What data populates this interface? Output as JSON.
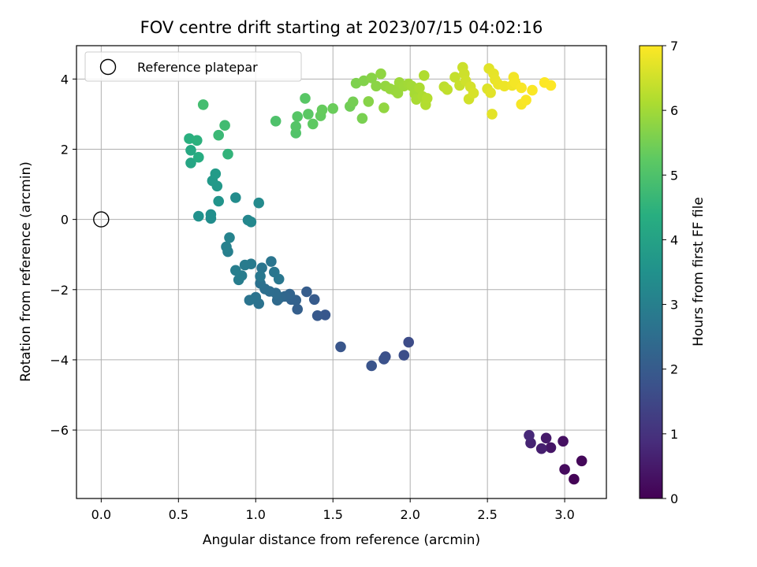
{
  "chart_data": {
    "type": "scatter",
    "title": "FOV centre drift starting at 2023/07/15 04:02:16",
    "xlabel": "Angular distance from reference (arcmin)",
    "ylabel": "Rotation from reference (arcmin)",
    "xlim": [
      -0.16,
      3.27
    ],
    "ylim": [
      -7.95,
      4.95
    ],
    "xticks": [
      0.0,
      0.5,
      1.0,
      1.5,
      2.0,
      2.5,
      3.0
    ],
    "xtick_labels": [
      "0.0",
      "0.5",
      "1.0",
      "1.5",
      "2.0",
      "2.5",
      "3.0"
    ],
    "yticks": [
      -6,
      -4,
      -2,
      0,
      2,
      4
    ],
    "ytick_labels": [
      "−6",
      "−4",
      "−2",
      "0",
      "2",
      "4"
    ],
    "grid": true,
    "legend": {
      "position": "top-left",
      "entries": [
        "Reference platepar"
      ]
    },
    "reference_point": {
      "x": 0.0,
      "y": 0.0
    },
    "colorbar": {
      "label": "Hours from first FF file",
      "range": [
        0,
        7
      ],
      "ticks": [
        0,
        1,
        2,
        3,
        4,
        5,
        6,
        7
      ],
      "tick_labels": [
        "0",
        "1",
        "2",
        "3",
        "4",
        "5",
        "6",
        "7"
      ],
      "colormap": "viridis"
    },
    "points": [
      {
        "x": 3.06,
        "y": -7.4,
        "c": 0.05
      },
      {
        "x": 3.11,
        "y": -6.88,
        "c": 0.12
      },
      {
        "x": 3.0,
        "y": -7.12,
        "c": 0.2
      },
      {
        "x": 2.99,
        "y": -6.32,
        "c": 0.3
      },
      {
        "x": 2.91,
        "y": -6.5,
        "c": 0.4
      },
      {
        "x": 2.88,
        "y": -6.23,
        "c": 0.5
      },
      {
        "x": 2.85,
        "y": -6.53,
        "c": 0.6
      },
      {
        "x": 2.78,
        "y": -6.37,
        "c": 0.7
      },
      {
        "x": 2.77,
        "y": -6.15,
        "c": 0.8
      },
      {
        "x": 1.99,
        "y": -3.5,
        "c": 1.6
      },
      {
        "x": 1.96,
        "y": -3.87,
        "c": 1.65
      },
      {
        "x": 1.84,
        "y": -3.91,
        "c": 1.7
      },
      {
        "x": 1.83,
        "y": -3.98,
        "c": 1.75
      },
      {
        "x": 1.75,
        "y": -4.17,
        "c": 1.8
      },
      {
        "x": 1.55,
        "y": -3.63,
        "c": 1.85
      },
      {
        "x": 1.45,
        "y": -2.72,
        "c": 1.9
      },
      {
        "x": 1.4,
        "y": -2.74,
        "c": 1.95
      },
      {
        "x": 1.38,
        "y": -2.28,
        "c": 2.0
      },
      {
        "x": 1.33,
        "y": -2.06,
        "c": 2.05
      },
      {
        "x": 1.27,
        "y": -2.56,
        "c": 2.1
      },
      {
        "x": 1.26,
        "y": -2.3,
        "c": 2.15
      },
      {
        "x": 1.23,
        "y": -2.28,
        "c": 2.2
      },
      {
        "x": 1.22,
        "y": -2.13,
        "c": 2.25
      },
      {
        "x": 1.19,
        "y": -2.19,
        "c": 2.3
      },
      {
        "x": 1.16,
        "y": -2.22,
        "c": 2.35
      },
      {
        "x": 1.14,
        "y": -2.3,
        "c": 2.4
      },
      {
        "x": 1.13,
        "y": -2.1,
        "c": 2.45
      },
      {
        "x": 1.09,
        "y": -2.05,
        "c": 2.5
      },
      {
        "x": 1.06,
        "y": -1.98,
        "c": 2.55
      },
      {
        "x": 1.03,
        "y": -1.82,
        "c": 2.6
      },
      {
        "x": 1.02,
        "y": -2.4,
        "c": 2.62
      },
      {
        "x": 1.0,
        "y": -2.22,
        "c": 2.65
      },
      {
        "x": 0.96,
        "y": -2.3,
        "c": 2.68
      },
      {
        "x": 1.04,
        "y": -1.38,
        "c": 2.7
      },
      {
        "x": 1.1,
        "y": -1.2,
        "c": 2.72
      },
      {
        "x": 1.12,
        "y": -1.5,
        "c": 2.75
      },
      {
        "x": 1.15,
        "y": -1.7,
        "c": 2.78
      },
      {
        "x": 1.03,
        "y": -1.62,
        "c": 2.8
      },
      {
        "x": 0.97,
        "y": -1.27,
        "c": 2.85
      },
      {
        "x": 0.93,
        "y": -1.3,
        "c": 2.88
      },
      {
        "x": 0.91,
        "y": -1.6,
        "c": 2.9
      },
      {
        "x": 0.89,
        "y": -1.72,
        "c": 2.93
      },
      {
        "x": 0.87,
        "y": -1.45,
        "c": 2.95
      },
      {
        "x": 0.82,
        "y": -0.92,
        "c": 3.0
      },
      {
        "x": 0.81,
        "y": -0.78,
        "c": 3.05
      },
      {
        "x": 0.83,
        "y": -0.52,
        "c": 3.1
      },
      {
        "x": 0.95,
        "y": -0.02,
        "c": 3.2
      },
      {
        "x": 0.97,
        "y": -0.07,
        "c": 3.25
      },
      {
        "x": 1.02,
        "y": 0.47,
        "c": 3.3
      },
      {
        "x": 0.87,
        "y": 0.62,
        "c": 3.35
      },
      {
        "x": 0.71,
        "y": 0.03,
        "c": 3.4
      },
      {
        "x": 0.71,
        "y": 0.14,
        "c": 3.45
      },
      {
        "x": 0.63,
        "y": 0.09,
        "c": 3.5
      },
      {
        "x": 0.76,
        "y": 0.52,
        "c": 3.6
      },
      {
        "x": 0.75,
        "y": 0.95,
        "c": 3.7
      },
      {
        "x": 0.72,
        "y": 1.1,
        "c": 3.75
      },
      {
        "x": 0.74,
        "y": 1.3,
        "c": 3.8
      },
      {
        "x": 0.58,
        "y": 1.61,
        "c": 4.1
      },
      {
        "x": 0.58,
        "y": 1.97,
        "c": 4.2
      },
      {
        "x": 0.63,
        "y": 1.77,
        "c": 4.3
      },
      {
        "x": 0.57,
        "y": 2.3,
        "c": 4.4
      },
      {
        "x": 0.62,
        "y": 2.25,
        "c": 4.45
      },
      {
        "x": 0.82,
        "y": 1.86,
        "c": 4.55
      },
      {
        "x": 0.76,
        "y": 2.4,
        "c": 4.7
      },
      {
        "x": 0.8,
        "y": 2.68,
        "c": 4.8
      },
      {
        "x": 0.66,
        "y": 3.27,
        "c": 4.85
      },
      {
        "x": 1.13,
        "y": 2.8,
        "c": 5.0
      },
      {
        "x": 1.26,
        "y": 2.46,
        "c": 5.05
      },
      {
        "x": 1.26,
        "y": 2.65,
        "c": 5.1
      },
      {
        "x": 1.27,
        "y": 2.93,
        "c": 5.12
      },
      {
        "x": 1.32,
        "y": 3.45,
        "c": 5.15
      },
      {
        "x": 1.34,
        "y": 3.0,
        "c": 5.2
      },
      {
        "x": 1.37,
        "y": 2.72,
        "c": 5.25
      },
      {
        "x": 1.42,
        "y": 2.95,
        "c": 5.3
      },
      {
        "x": 1.43,
        "y": 3.12,
        "c": 5.33
      },
      {
        "x": 1.5,
        "y": 3.16,
        "c": 5.38
      },
      {
        "x": 1.61,
        "y": 3.22,
        "c": 5.45
      },
      {
        "x": 1.63,
        "y": 3.35,
        "c": 5.5
      },
      {
        "x": 1.69,
        "y": 2.88,
        "c": 5.55
      },
      {
        "x": 1.65,
        "y": 3.88,
        "c": 5.6
      },
      {
        "x": 1.7,
        "y": 3.95,
        "c": 5.65
      },
      {
        "x": 1.73,
        "y": 3.36,
        "c": 5.7
      },
      {
        "x": 1.75,
        "y": 4.03,
        "c": 5.72
      },
      {
        "x": 1.78,
        "y": 3.8,
        "c": 5.75
      },
      {
        "x": 1.81,
        "y": 4.15,
        "c": 5.8
      },
      {
        "x": 1.83,
        "y": 3.18,
        "c": 5.83
      },
      {
        "x": 1.84,
        "y": 3.8,
        "c": 5.85
      },
      {
        "x": 1.87,
        "y": 3.72,
        "c": 5.88
      },
      {
        "x": 1.9,
        "y": 3.68,
        "c": 5.9
      },
      {
        "x": 1.92,
        "y": 3.6,
        "c": 5.92
      },
      {
        "x": 1.93,
        "y": 3.9,
        "c": 5.95
      },
      {
        "x": 1.96,
        "y": 3.8,
        "c": 5.97
      },
      {
        "x": 1.99,
        "y": 3.86,
        "c": 6.0
      },
      {
        "x": 2.01,
        "y": 3.8,
        "c": 6.02
      },
      {
        "x": 2.03,
        "y": 3.58,
        "c": 6.05
      },
      {
        "x": 2.04,
        "y": 3.42,
        "c": 6.08
      },
      {
        "x": 2.06,
        "y": 3.75,
        "c": 6.1
      },
      {
        "x": 2.08,
        "y": 3.5,
        "c": 6.12
      },
      {
        "x": 2.09,
        "y": 4.1,
        "c": 6.15
      },
      {
        "x": 2.1,
        "y": 3.27,
        "c": 6.18
      },
      {
        "x": 2.11,
        "y": 3.45,
        "c": 6.2
      },
      {
        "x": 2.22,
        "y": 3.78,
        "c": 6.3
      },
      {
        "x": 2.24,
        "y": 3.7,
        "c": 6.33
      },
      {
        "x": 2.29,
        "y": 4.05,
        "c": 6.38
      },
      {
        "x": 2.32,
        "y": 3.82,
        "c": 6.42
      },
      {
        "x": 2.34,
        "y": 4.33,
        "c": 6.45
      },
      {
        "x": 2.35,
        "y": 4.15,
        "c": 6.48
      },
      {
        "x": 2.36,
        "y": 3.95,
        "c": 6.5
      },
      {
        "x": 2.38,
        "y": 3.43,
        "c": 6.52
      },
      {
        "x": 2.39,
        "y": 3.78,
        "c": 6.55
      },
      {
        "x": 2.41,
        "y": 3.6,
        "c": 6.58
      },
      {
        "x": 2.5,
        "y": 3.72,
        "c": 6.65
      },
      {
        "x": 2.51,
        "y": 4.3,
        "c": 6.68
      },
      {
        "x": 2.52,
        "y": 3.61,
        "c": 6.7
      },
      {
        "x": 2.53,
        "y": 3.0,
        "c": 6.72
      },
      {
        "x": 2.54,
        "y": 4.15,
        "c": 6.75
      },
      {
        "x": 2.55,
        "y": 3.98,
        "c": 6.77
      },
      {
        "x": 2.57,
        "y": 3.85,
        "c": 6.8
      },
      {
        "x": 2.61,
        "y": 3.8,
        "c": 6.83
      },
      {
        "x": 2.66,
        "y": 3.82,
        "c": 6.86
      },
      {
        "x": 2.67,
        "y": 4.05,
        "c": 6.88
      },
      {
        "x": 2.68,
        "y": 3.9,
        "c": 6.9
      },
      {
        "x": 2.72,
        "y": 3.28,
        "c": 6.92
      },
      {
        "x": 2.72,
        "y": 3.75,
        "c": 6.94
      },
      {
        "x": 2.75,
        "y": 3.4,
        "c": 6.96
      },
      {
        "x": 2.79,
        "y": 3.68,
        "c": 6.97
      },
      {
        "x": 2.87,
        "y": 3.9,
        "c": 6.99
      },
      {
        "x": 2.91,
        "y": 3.82,
        "c": 7.0
      }
    ]
  }
}
